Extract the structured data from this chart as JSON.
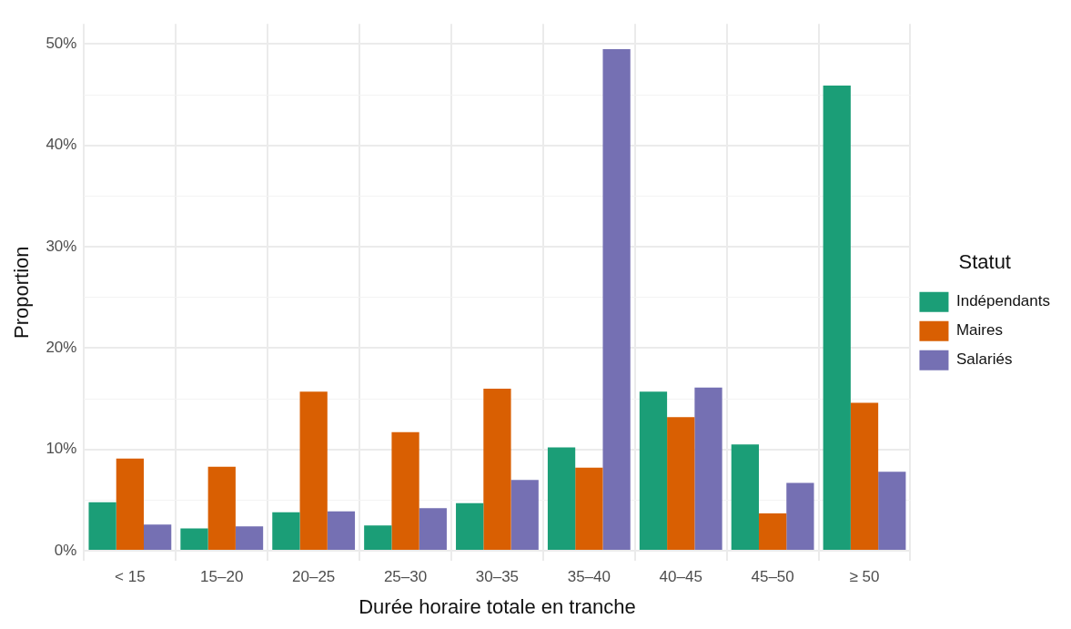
{
  "chart_data": {
    "type": "bar",
    "xlabel": "Durée horaire totale en tranche",
    "ylabel": "Proportion",
    "legend_title": "Statut",
    "categories": [
      "< 15",
      "15–20",
      "20–25",
      "25–30",
      "30–35",
      "35–40",
      "40–45",
      "45–50",
      "≥ 50"
    ],
    "series": [
      {
        "name": "Indépendants",
        "color": "#1b9e77",
        "values": [
          4.8,
          2.2,
          3.8,
          2.5,
          4.7,
          10.2,
          15.7,
          10.5,
          45.9
        ]
      },
      {
        "name": "Maires",
        "color": "#d95f02",
        "values": [
          9.1,
          8.3,
          15.7,
          11.7,
          16.0,
          8.2,
          13.2,
          3.7,
          14.6
        ]
      },
      {
        "name": "Salariés",
        "color": "#7570b3",
        "values": [
          2.6,
          2.4,
          3.9,
          4.2,
          7.0,
          49.5,
          16.1,
          6.7,
          7.8
        ]
      }
    ],
    "ylim": [
      -1,
      52
    ],
    "yticks": [
      {
        "value": 0,
        "label": "0%"
      },
      {
        "value": 5,
        "label": null
      },
      {
        "value": 10,
        "label": "10%"
      },
      {
        "value": 15,
        "label": null
      },
      {
        "value": 20,
        "label": "20%"
      },
      {
        "value": 25,
        "label": null
      },
      {
        "value": 30,
        "label": "30%"
      },
      {
        "value": 35,
        "label": null
      },
      {
        "value": 40,
        "label": "40%"
      },
      {
        "value": 45,
        "label": null
      },
      {
        "value": 50,
        "label": "50%"
      }
    ],
    "grid": true,
    "legend": "right"
  }
}
